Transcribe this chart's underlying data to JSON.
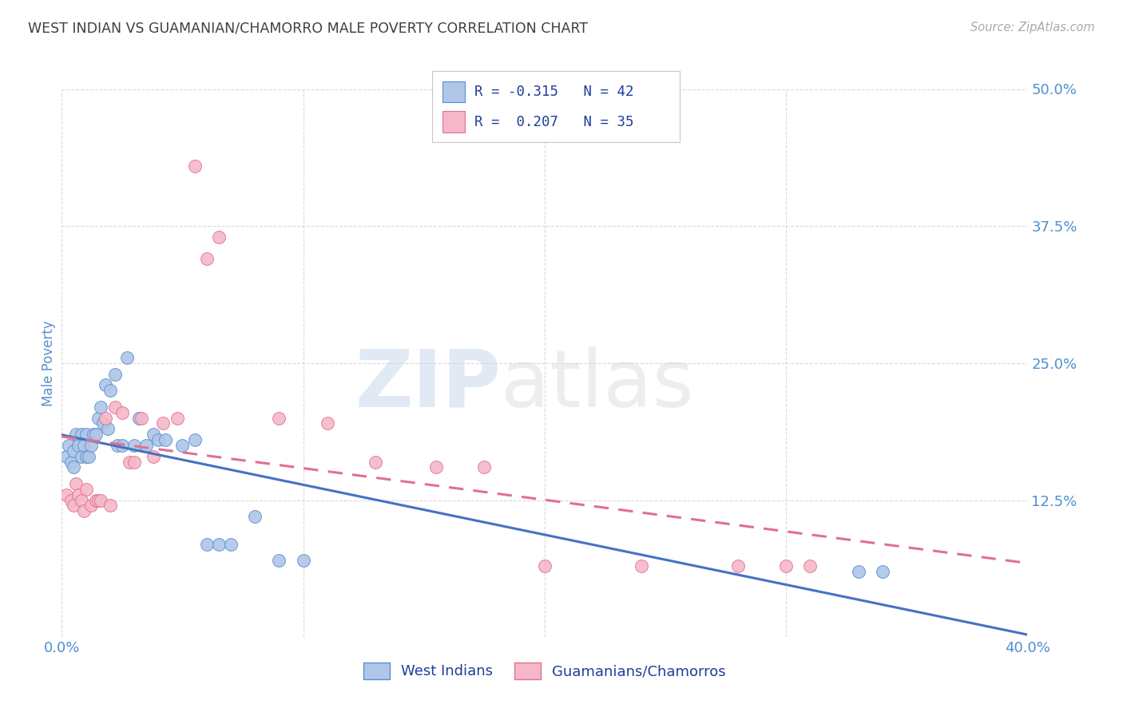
{
  "title": "WEST INDIAN VS GUAMANIAN/CHAMORRO MALE POVERTY CORRELATION CHART",
  "source": "Source: ZipAtlas.com",
  "ylabel": "Male Poverty",
  "xlim": [
    0.0,
    0.4
  ],
  "ylim": [
    0.0,
    0.5
  ],
  "xticks": [
    0.0,
    0.1,
    0.2,
    0.3,
    0.4
  ],
  "yticks": [
    0.0,
    0.125,
    0.25,
    0.375,
    0.5
  ],
  "xticklabels": [
    "0.0%",
    "",
    "",
    "",
    "40.0%"
  ],
  "yticklabels": [
    "",
    "12.5%",
    "25.0%",
    "37.5%",
    "50.0%"
  ],
  "blue_R": -0.315,
  "blue_N": 42,
  "pink_R": 0.207,
  "pink_N": 35,
  "legend_labels": [
    "West Indians",
    "Guamanians/Chamorros"
  ],
  "blue_color": "#aec6e8",
  "pink_color": "#f5b8c8",
  "blue_edge_color": "#5b8fcc",
  "pink_edge_color": "#e07090",
  "blue_line_color": "#4472c4",
  "pink_line_color": "#e07090",
  "blue_points_x": [
    0.002,
    0.003,
    0.004,
    0.005,
    0.005,
    0.006,
    0.007,
    0.008,
    0.008,
    0.009,
    0.01,
    0.01,
    0.011,
    0.012,
    0.013,
    0.014,
    0.015,
    0.016,
    0.017,
    0.018,
    0.019,
    0.02,
    0.022,
    0.023,
    0.025,
    0.027,
    0.03,
    0.032,
    0.035,
    0.038,
    0.04,
    0.043,
    0.05,
    0.055,
    0.06,
    0.065,
    0.07,
    0.08,
    0.09,
    0.1,
    0.33,
    0.34
  ],
  "blue_points_y": [
    0.165,
    0.175,
    0.16,
    0.155,
    0.17,
    0.185,
    0.175,
    0.165,
    0.185,
    0.175,
    0.165,
    0.185,
    0.165,
    0.175,
    0.185,
    0.185,
    0.2,
    0.21,
    0.195,
    0.23,
    0.19,
    0.225,
    0.24,
    0.175,
    0.175,
    0.255,
    0.175,
    0.2,
    0.175,
    0.185,
    0.18,
    0.18,
    0.175,
    0.18,
    0.085,
    0.085,
    0.085,
    0.11,
    0.07,
    0.07,
    0.06,
    0.06
  ],
  "pink_points_x": [
    0.002,
    0.004,
    0.005,
    0.006,
    0.007,
    0.008,
    0.009,
    0.01,
    0.012,
    0.014,
    0.015,
    0.016,
    0.018,
    0.02,
    0.022,
    0.025,
    0.028,
    0.03,
    0.033,
    0.038,
    0.042,
    0.048,
    0.055,
    0.06,
    0.065,
    0.09,
    0.11,
    0.13,
    0.155,
    0.175,
    0.2,
    0.24,
    0.28,
    0.3,
    0.31
  ],
  "pink_points_y": [
    0.13,
    0.125,
    0.12,
    0.14,
    0.13,
    0.125,
    0.115,
    0.135,
    0.12,
    0.125,
    0.125,
    0.125,
    0.2,
    0.12,
    0.21,
    0.205,
    0.16,
    0.16,
    0.2,
    0.165,
    0.195,
    0.2,
    0.43,
    0.345,
    0.365,
    0.2,
    0.195,
    0.16,
    0.155,
    0.155,
    0.065,
    0.065,
    0.065,
    0.065,
    0.065
  ],
  "watermark_zip": "ZIP",
  "watermark_atlas": "atlas",
  "background_color": "#ffffff",
  "grid_color": "#d8d8d8",
  "title_color": "#404040",
  "axis_label_color": "#5b8fcc",
  "tick_label_color": "#4d90d0",
  "legend_text_color": "#1f3d99",
  "source_color": "#aaaaaa"
}
